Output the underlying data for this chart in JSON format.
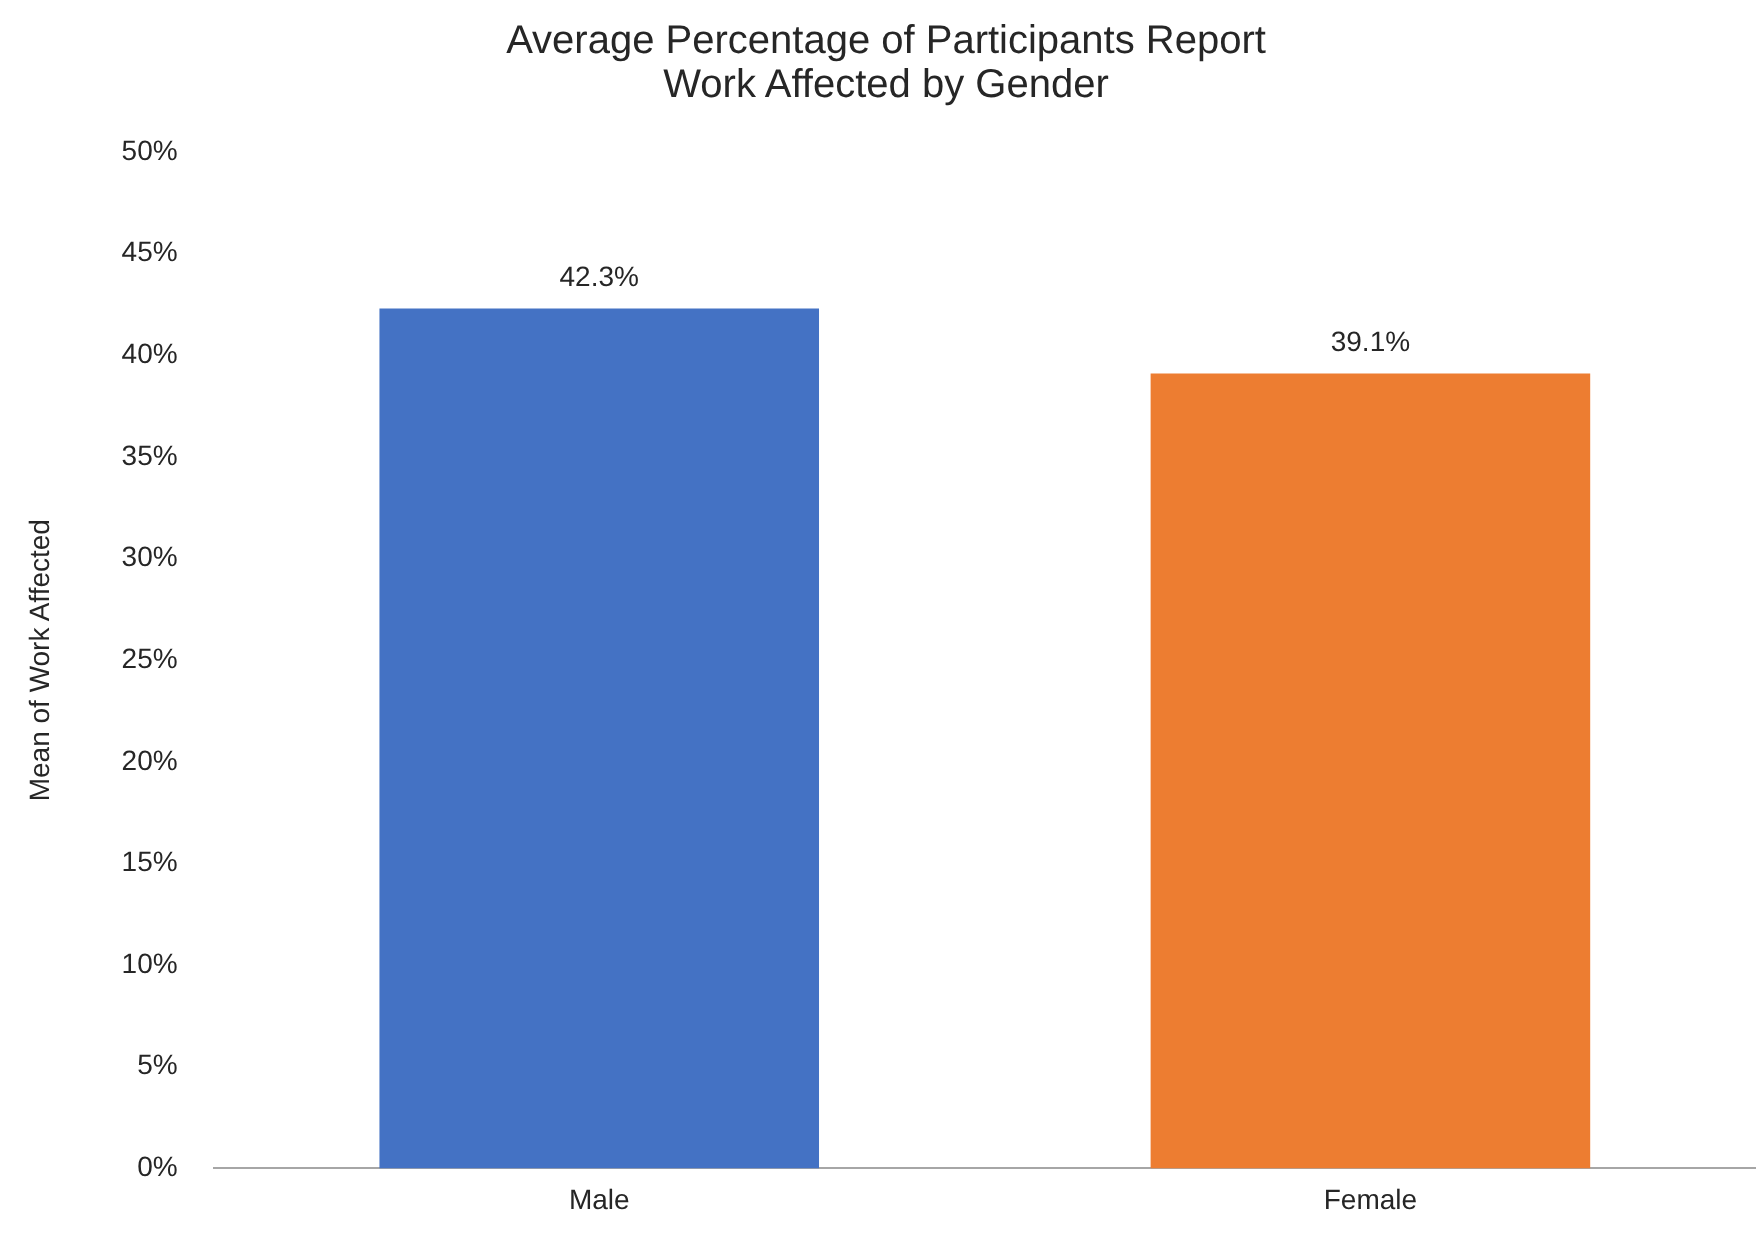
{
  "chart_data": {
    "type": "bar",
    "title": "Average Percentage of Participants Report\nWork Affected by Gender",
    "ylabel": "Mean of Work Affected",
    "categories": [
      "Male",
      "Female"
    ],
    "values": [
      42.3,
      39.1
    ],
    "colors": [
      "#4472c4",
      "#ed7d31"
    ],
    "value_labels": [
      "42.3%",
      "39.1%"
    ],
    "ylim": [
      0,
      50
    ],
    "yticks": [
      {
        "value": 0,
        "label": "0%"
      },
      {
        "value": 5,
        "label": "5%"
      },
      {
        "value": 10,
        "label": "10%"
      },
      {
        "value": 15,
        "label": "15%"
      },
      {
        "value": 20,
        "label": "20%"
      },
      {
        "value": 25,
        "label": "25%"
      },
      {
        "value": 30,
        "label": "30%"
      },
      {
        "value": 35,
        "label": "35%"
      },
      {
        "value": 40,
        "label": "40%"
      },
      {
        "value": 45,
        "label": "45%"
      },
      {
        "value": 50,
        "label": "50%"
      }
    ],
    "grid": false,
    "legend": false
  }
}
